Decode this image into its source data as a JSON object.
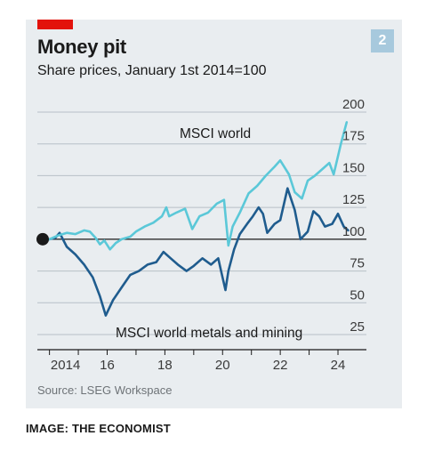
{
  "header": {
    "title": "Money pit",
    "subtitle": "Share prices, January 1st 2014=100",
    "badge": "2"
  },
  "footer": {
    "source": "Source: LSEG Workspace",
    "credit": "IMAGE: THE ECONOMIST"
  },
  "colors": {
    "background": "#e9edf0",
    "accent_red": "#e3120b",
    "world": "#5bc8d8",
    "mining": "#1f5c8e",
    "badge": "#a7c9dd"
  },
  "chart_data": {
    "type": "line",
    "title": "Money pit",
    "subtitle": "Share prices, January 1st 2014=100",
    "ylim": [
      25,
      200
    ],
    "yticks": [
      25,
      50,
      75,
      100,
      125,
      150,
      175,
      200
    ],
    "ytick_labels": [
      "25",
      "50",
      "75",
      "100",
      "125",
      "150",
      "175",
      "200"
    ],
    "xlim": [
      2014.0,
      2024.4
    ],
    "xticks": [
      2014,
      2016,
      2018,
      2020,
      2022,
      2024
    ],
    "xtick_labels": [
      "2014",
      "16",
      "18",
      "20",
      "22",
      "24"
    ],
    "grid": "horizontal",
    "baseline": 100,
    "series": [
      {
        "name": "MSCI world",
        "color": "#5bc8d8",
        "points": [
          [
            2014.0,
            100
          ],
          [
            2014.3,
            103
          ],
          [
            2014.6,
            105
          ],
          [
            2014.9,
            104
          ],
          [
            2015.2,
            107
          ],
          [
            2015.4,
            106
          ],
          [
            2015.6,
            101
          ],
          [
            2015.75,
            96
          ],
          [
            2015.9,
            99
          ],
          [
            2016.1,
            92
          ],
          [
            2016.3,
            97
          ],
          [
            2016.5,
            100
          ],
          [
            2016.8,
            102
          ],
          [
            2017.0,
            106
          ],
          [
            2017.3,
            110
          ],
          [
            2017.6,
            113
          ],
          [
            2017.9,
            118
          ],
          [
            2018.05,
            125
          ],
          [
            2018.15,
            118
          ],
          [
            2018.4,
            121
          ],
          [
            2018.7,
            124
          ],
          [
            2018.95,
            108
          ],
          [
            2019.2,
            118
          ],
          [
            2019.5,
            121
          ],
          [
            2019.8,
            128
          ],
          [
            2020.05,
            131
          ],
          [
            2020.2,
            95
          ],
          [
            2020.35,
            110
          ],
          [
            2020.6,
            121
          ],
          [
            2020.9,
            136
          ],
          [
            2021.2,
            142
          ],
          [
            2021.5,
            150
          ],
          [
            2021.8,
            157
          ],
          [
            2022.0,
            162
          ],
          [
            2022.3,
            151
          ],
          [
            2022.5,
            137
          ],
          [
            2022.75,
            132
          ],
          [
            2022.95,
            146
          ],
          [
            2023.2,
            150
          ],
          [
            2023.5,
            156
          ],
          [
            2023.7,
            160
          ],
          [
            2023.85,
            151
          ],
          [
            2024.1,
            175
          ],
          [
            2024.3,
            192
          ]
        ]
      },
      {
        "name": "MSCI world metals and mining",
        "color": "#1f5c8e",
        "points": [
          [
            2014.0,
            100
          ],
          [
            2014.2,
            101
          ],
          [
            2014.35,
            105
          ],
          [
            2014.6,
            94
          ],
          [
            2014.9,
            88
          ],
          [
            2015.2,
            80
          ],
          [
            2015.5,
            70
          ],
          [
            2015.75,
            55
          ],
          [
            2015.95,
            40
          ],
          [
            2016.2,
            52
          ],
          [
            2016.5,
            62
          ],
          [
            2016.8,
            72
          ],
          [
            2017.1,
            75
          ],
          [
            2017.4,
            80
          ],
          [
            2017.7,
            82
          ],
          [
            2017.95,
            90
          ],
          [
            2018.2,
            85
          ],
          [
            2018.45,
            80
          ],
          [
            2018.75,
            75
          ],
          [
            2019.0,
            79
          ],
          [
            2019.3,
            85
          ],
          [
            2019.6,
            80
          ],
          [
            2019.85,
            85
          ],
          [
            2019.95,
            75
          ],
          [
            2020.1,
            60
          ],
          [
            2020.2,
            75
          ],
          [
            2020.4,
            92
          ],
          [
            2020.6,
            104
          ],
          [
            2020.85,
            112
          ],
          [
            2021.05,
            118
          ],
          [
            2021.25,
            125
          ],
          [
            2021.4,
            120
          ],
          [
            2021.55,
            105
          ],
          [
            2021.8,
            112
          ],
          [
            2022.0,
            115
          ],
          [
            2022.25,
            140
          ],
          [
            2022.5,
            123
          ],
          [
            2022.7,
            100
          ],
          [
            2022.95,
            106
          ],
          [
            2023.15,
            122
          ],
          [
            2023.35,
            118
          ],
          [
            2023.55,
            110
          ],
          [
            2023.8,
            112
          ],
          [
            2024.0,
            120
          ],
          [
            2024.2,
            110
          ],
          [
            2024.35,
            107
          ]
        ]
      }
    ],
    "annotations": [
      {
        "text": "MSCI world",
        "series": "MSCI world"
      },
      {
        "text": "MSCI world metals and mining",
        "series": "MSCI world metals and mining"
      }
    ]
  }
}
